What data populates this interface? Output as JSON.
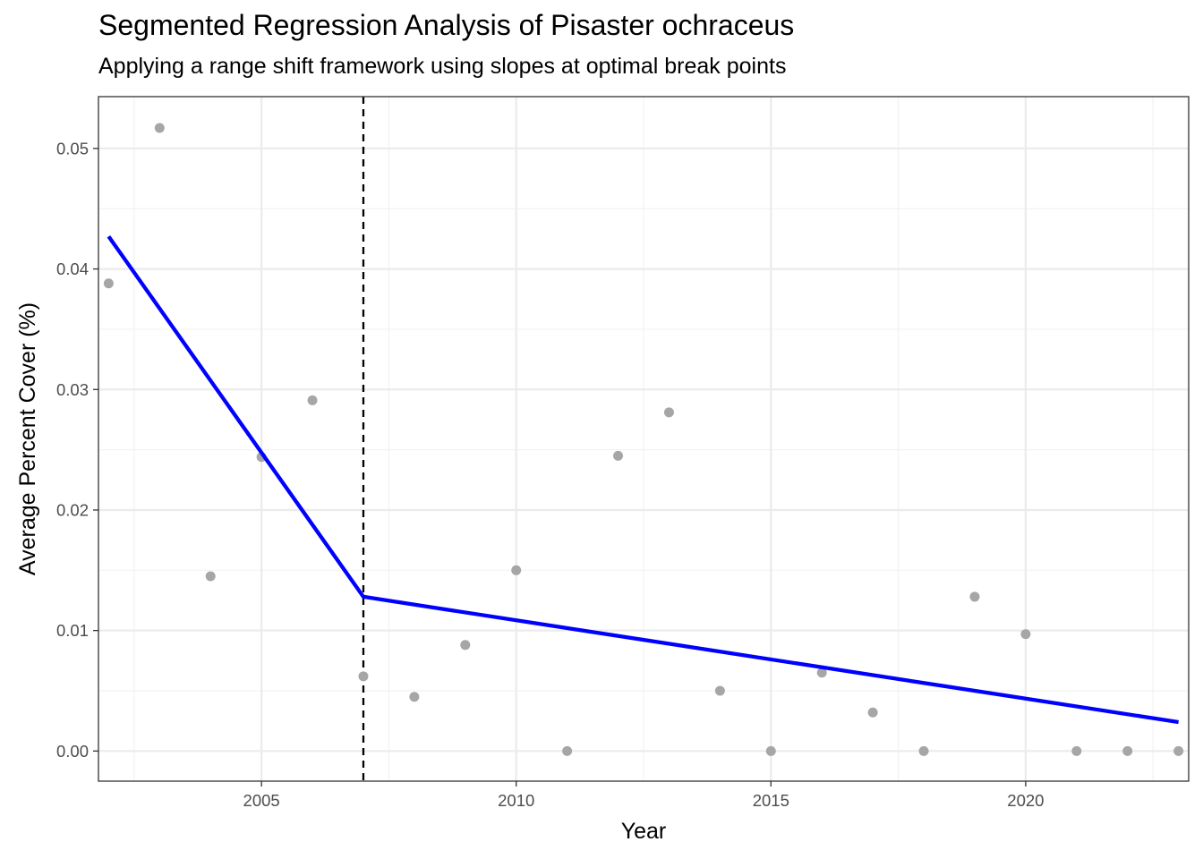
{
  "chart_data": {
    "type": "scatter",
    "title": "Segmented Regression Analysis of Pisaster ochraceus",
    "subtitle": "Applying a range shift framework using slopes at optimal break points",
    "xlabel": "Year",
    "ylabel": "Average Percent Cover (%)",
    "xlim": [
      2001.8,
      2023.2
    ],
    "ylim": [
      -0.0025,
      0.0543
    ],
    "x_ticks": [
      "2005",
      "2010",
      "2015",
      "2020"
    ],
    "x_tick_values": [
      2005,
      2010,
      2015,
      2020
    ],
    "y_ticks": [
      "0.00",
      "0.01",
      "0.02",
      "0.03",
      "0.04",
      "0.05"
    ],
    "y_tick_values": [
      0,
      0.01,
      0.02,
      0.03,
      0.04,
      0.05
    ],
    "grid": true,
    "points": {
      "color": "#a6a6a6",
      "x": [
        2002,
        2003,
        2004,
        2005,
        2006,
        2007,
        2008,
        2009,
        2010,
        2011,
        2012,
        2013,
        2014,
        2015,
        2016,
        2017,
        2018,
        2019,
        2020,
        2021,
        2022,
        2023
      ],
      "y": [
        0.0388,
        0.0517,
        0.0145,
        0.0244,
        0.0291,
        0.0062,
        0.0045,
        0.0088,
        0.015,
        0.0,
        0.0245,
        0.0281,
        0.005,
        0.0,
        0.0065,
        0.0032,
        0.0,
        0.0128,
        0.0097,
        0.0,
        0.0,
        0.0
      ]
    },
    "fit_line": {
      "color": "#0000ff",
      "x": [
        2002,
        2007,
        2023
      ],
      "y": [
        0.0427,
        0.0128,
        0.0024
      ]
    },
    "breakpoint": {
      "x": 2007,
      "color": "#000000",
      "style": "dashed"
    }
  }
}
